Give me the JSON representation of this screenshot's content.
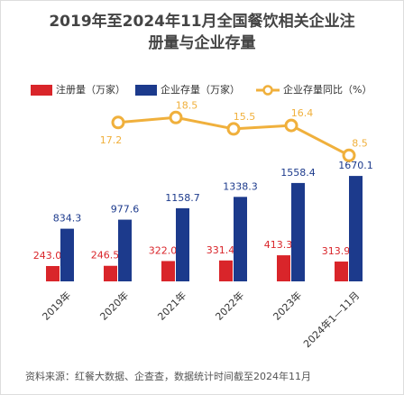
{
  "chart_data": {
    "type": "bar",
    "title": "2019年至2024年11月全国餐饮相关企业注",
    "title_line2": "册量与企业存量",
    "categories": [
      "2019年",
      "2020年",
      "2021年",
      "2022年",
      "2023年",
      "2024年1—11月"
    ],
    "series": [
      {
        "name": "注册量（万家）",
        "color": "#d9252a",
        "values": [
          243,
          246.5,
          322,
          331.4,
          413.3,
          313.9
        ],
        "value_labels": [
          "243.0",
          "246.5",
          "322.0",
          "331.4",
          "413.3",
          "313.9"
        ]
      },
      {
        "name": "企业存量（万家）",
        "color": "#1c3a8c",
        "values": [
          834.3,
          977.6,
          1158.7,
          1338.3,
          1558.4,
          1670.1
        ]
      },
      {
        "name": "企业存量同比（%）",
        "color": "#f0b03c",
        "type": "line",
        "axis": "y2",
        "values": [
          null,
          17.2,
          18.5,
          15.5,
          16.4,
          8.5
        ]
      }
    ],
    "ylim": [
      0,
      1800
    ],
    "y2lim": [
      0,
      25
    ],
    "source": "资料来源：红餐大数据、企查查，数据统计时间截至2024年11月"
  }
}
